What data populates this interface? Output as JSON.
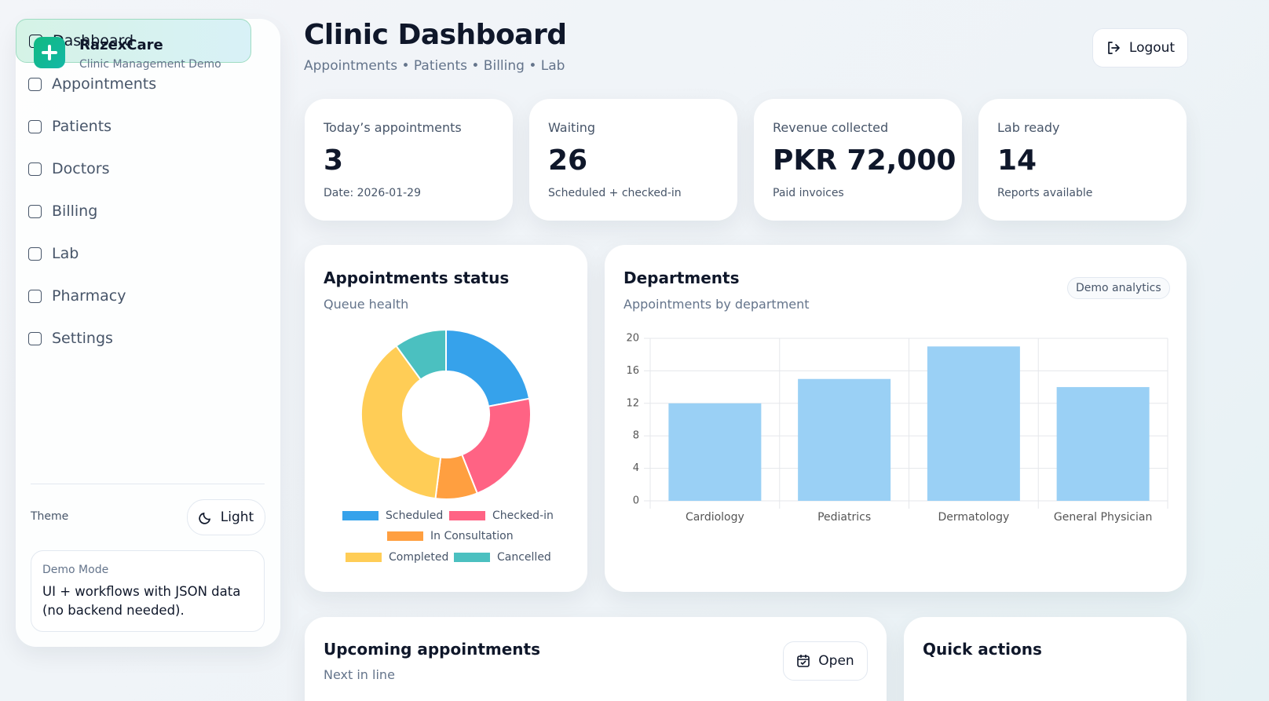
{
  "brand": {
    "name": "RazexCare",
    "tagline": "Clinic Management Demo"
  },
  "nav": [
    "Dashboard",
    "Appointments",
    "Patients",
    "Doctors",
    "Billing",
    "Lab",
    "Pharmacy",
    "Settings"
  ],
  "theme": {
    "label": "Theme",
    "button": "Light"
  },
  "demo": {
    "title": "Demo Mode",
    "text": "UI + workflows with JSON data (no backend needed)."
  },
  "header": {
    "title": "Clinic Dashboard",
    "subtitle": "Appointments • Patients • Billing • Lab",
    "logout": "Logout"
  },
  "stats": [
    {
      "label": "Today’s appointments",
      "value": 3,
      "note": "Date: 2026-01-29"
    },
    {
      "label": "Waiting",
      "value": 26,
      "note": "Scheduled + checked-in"
    },
    {
      "label": "Revenue collected",
      "value": "PKR 72,000",
      "note": "Paid invoices"
    },
    {
      "label": "Lab ready",
      "value": 14,
      "note": "Reports available"
    }
  ],
  "chart_data": [
    {
      "type": "pie",
      "title": "Appointments status",
      "subtitle": "Queue health",
      "categories": [
        "Scheduled",
        "Checked-in",
        "In Consultation",
        "Completed",
        "Cancelled"
      ],
      "values": [
        11,
        11,
        4,
        19,
        5
      ],
      "colors": [
        "#36a2eb",
        "#ff6384",
        "#ff9f40",
        "#ffcd56",
        "#4bc0c0"
      ]
    },
    {
      "type": "bar",
      "title": "Departments",
      "subtitle": "Appointments by department",
      "badge": "Demo analytics",
      "categories": [
        "Cardiology",
        "Pediatrics",
        "Dermatology",
        "General Physician"
      ],
      "values": [
        12,
        15,
        19,
        14
      ],
      "color": "#9ad0f5",
      "ylim": [
        0,
        20
      ],
      "yticks": [
        0,
        4,
        8,
        12,
        16,
        20
      ],
      "grid": true
    }
  ],
  "panels": {
    "upcoming": {
      "title": "Upcoming appointments",
      "subtitle": "Next in line",
      "button": "Open"
    },
    "quick": {
      "title": "Quick actions"
    }
  }
}
